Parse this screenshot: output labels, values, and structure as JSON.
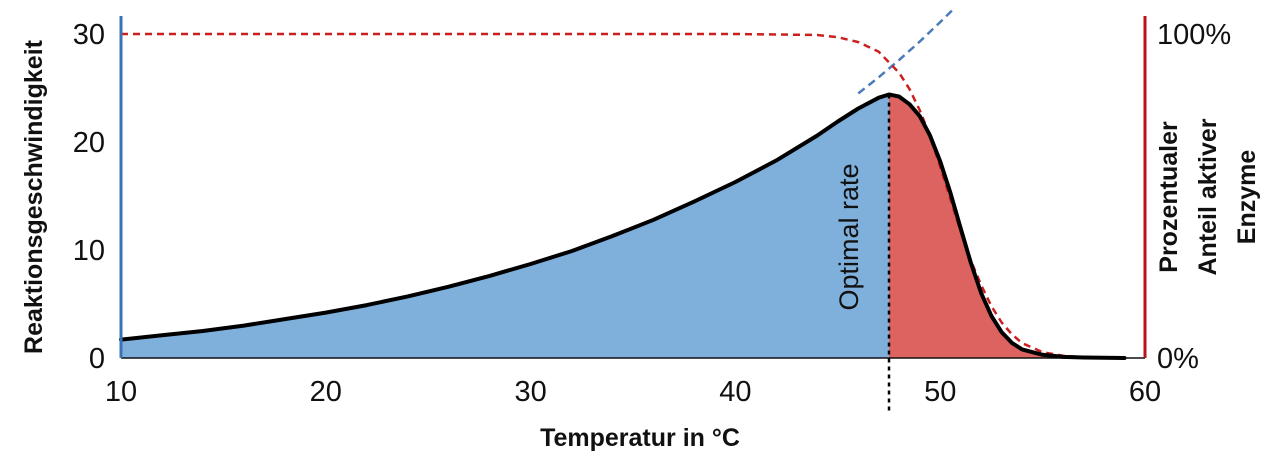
{
  "chart_data": {
    "type": "area",
    "xlabel": "Temperatur in °C",
    "ylabel": "Reaktionsgeschwindigkeit",
    "y2label_lines": [
      "Prozentualer",
      "Anteil aktiver",
      "Enzyme"
    ],
    "xlim": [
      10,
      60
    ],
    "ylim": [
      0,
      30
    ],
    "x_ticks": [
      "10",
      "20",
      "30",
      "40",
      "50",
      "60"
    ],
    "y_ticks": [
      "0",
      "10",
      "20",
      "30"
    ],
    "y2_ticks": [
      "0%",
      "100%"
    ],
    "optimum_x": 47.5,
    "annotation": "Optimal rate",
    "colors": {
      "rising_fill": "#7fb0dc",
      "falling_fill": "#dd6360",
      "rate_curve": "#000000",
      "active_enzyme_curve": "#cc1f1f",
      "exponential_trend": "#4a7ab8",
      "left_axis": "#3a72b6",
      "right_axis": "#b8141a"
    },
    "series": [
      {
        "role": "reaction rate (black curve)",
        "x": [
          10,
          12,
          14,
          16,
          18,
          20,
          22,
          24,
          26,
          28,
          30,
          32,
          34,
          36,
          38,
          40,
          42,
          44,
          45,
          46,
          47,
          47.5,
          48,
          48.5,
          49,
          49.5,
          50,
          50.5,
          51,
          51.5,
          52,
          52.5,
          53,
          53.5,
          54,
          55,
          56,
          57,
          58,
          59
        ],
        "y": [
          1.7,
          2.1,
          2.5,
          3.0,
          3.6,
          4.2,
          4.9,
          5.7,
          6.6,
          7.6,
          8.7,
          9.9,
          11.3,
          12.8,
          14.5,
          16.3,
          18.3,
          20.6,
          21.9,
          23.1,
          24.1,
          24.4,
          24.2,
          23.5,
          22.4,
          20.6,
          18.2,
          15.3,
          12.0,
          8.8,
          6.0,
          3.9,
          2.4,
          1.4,
          0.8,
          0.3,
          0.1,
          0.05,
          0.02,
          0
        ]
      },
      {
        "role": "active enzyme fraction (red dashed curve, right axis %)",
        "x": [
          10,
          20,
          30,
          40,
          44,
          45,
          46,
          47,
          48,
          48.5,
          49,
          49.5,
          50,
          50.5,
          51,
          51.5,
          52,
          52.5,
          53,
          53.5,
          54,
          55,
          56,
          57,
          58,
          59
        ],
        "y": [
          100,
          100,
          100,
          100,
          99.7,
          99,
          97.5,
          94.5,
          88,
          83,
          76.5,
          68.5,
          59,
          49,
          39,
          30,
          22.5,
          16,
          11,
          7.3,
          4.6,
          1.8,
          0.7,
          0.25,
          0.08,
          0
        ]
      },
      {
        "role": "exponential trend (blue dashed line)",
        "x": [
          46,
          47,
          48,
          49,
          50,
          50.7
        ],
        "y": [
          24.5,
          26.0,
          27.6,
          29.3,
          31.1,
          32.4
        ]
      }
    ]
  }
}
